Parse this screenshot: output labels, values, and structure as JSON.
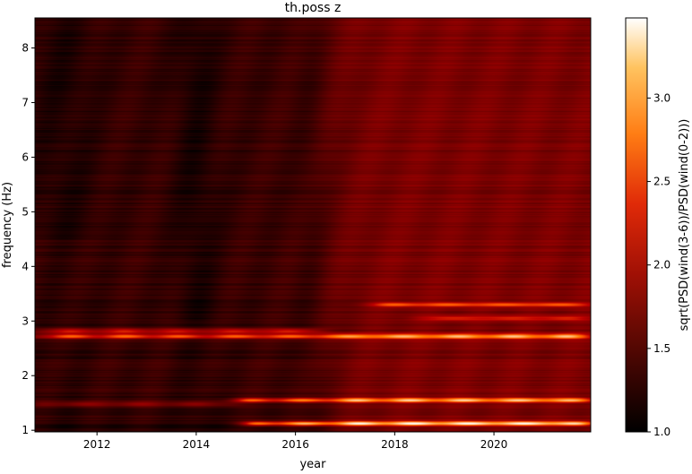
{
  "chart_data": {
    "type": "heatmap",
    "title": "th.poss z",
    "xlabel": "year",
    "ylabel": "frequency (Hz)",
    "colorbar_label": "sqrt(PSD(wind(3-6))/PSD(wind(0-2)))",
    "colormap": "gist_heat",
    "xlim": [
      2010.75,
      2021.95
    ],
    "ylim": [
      0.97,
      8.55
    ],
    "clim": [
      1.0,
      3.48
    ],
    "x_ticks": [
      2012,
      2014,
      2016,
      2018,
      2020
    ],
    "x_tick_labels": [
      "2012",
      "2014",
      "2016",
      "2018",
      "2020"
    ],
    "y_ticks": [
      1,
      2,
      3,
      4,
      5,
      6,
      7,
      8
    ],
    "y_tick_labels": [
      "1",
      "2",
      "3",
      "4",
      "5",
      "6",
      "7",
      "8"
    ],
    "colorbar_ticks": [
      1.0,
      1.5,
      2.0,
      2.5,
      3.0
    ],
    "colorbar_tick_labels": [
      "1.0",
      "1.5",
      "2.0",
      "2.5",
      "3.0"
    ],
    "features": [
      {
        "frequency": 1.12,
        "start_year": 2015.0,
        "end_year": 2021.95,
        "peak_value": 3.4
      },
      {
        "frequency": 1.55,
        "start_year": 2014.8,
        "end_year": 2021.95,
        "peak_value": 3.0
      },
      {
        "frequency": 1.48,
        "start_year": 2010.75,
        "end_year": 2014.8,
        "peak_value": 2.3
      },
      {
        "frequency": 2.72,
        "start_year": 2010.75,
        "end_year": 2021.95,
        "peak_value": 3.1
      },
      {
        "frequency": 2.82,
        "start_year": 2010.75,
        "end_year": 2016.5,
        "peak_value": 2.7
      },
      {
        "frequency": 3.3,
        "start_year": 2017.5,
        "end_year": 2021.95,
        "peak_value": 2.6
      },
      {
        "frequency": 3.05,
        "start_year": 2018.5,
        "end_year": 2021.95,
        "peak_value": 2.3
      }
    ]
  }
}
